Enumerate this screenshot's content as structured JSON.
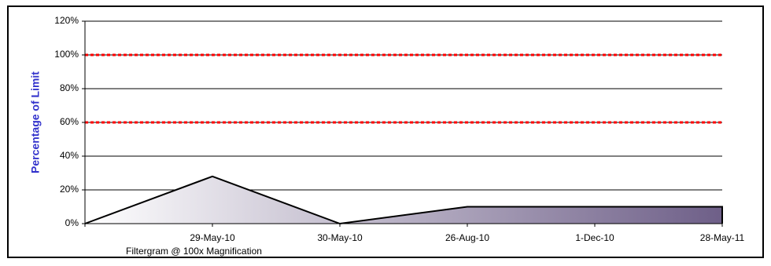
{
  "chart_data": {
    "type": "area",
    "ylabel": "Percentage of Limit",
    "footnote": "Filtergram @ 100x Magnification",
    "categories": [
      null,
      "29-May-10",
      "30-May-10",
      "26-Aug-10",
      "1-Dec-10",
      "28-May-11"
    ],
    "values": [
      0,
      28,
      0,
      10,
      10,
      10
    ],
    "color": "#6e5f88",
    "line_color": "#000000",
    "ylim": [
      0,
      120
    ],
    "yticks": [
      {
        "value": 0,
        "label": "0%"
      },
      {
        "value": 20,
        "label": "20%"
      },
      {
        "value": 40,
        "label": "40%"
      },
      {
        "value": 60,
        "label": "60%"
      },
      {
        "value": 80,
        "label": "80%"
      },
      {
        "value": 100,
        "label": "100%"
      },
      {
        "value": 120,
        "label": "120%"
      }
    ],
    "grid": true,
    "limit_lines": [
      100,
      60
    ],
    "limit_color": "#ff0000",
    "ylabel_color": "#3333cc"
  }
}
